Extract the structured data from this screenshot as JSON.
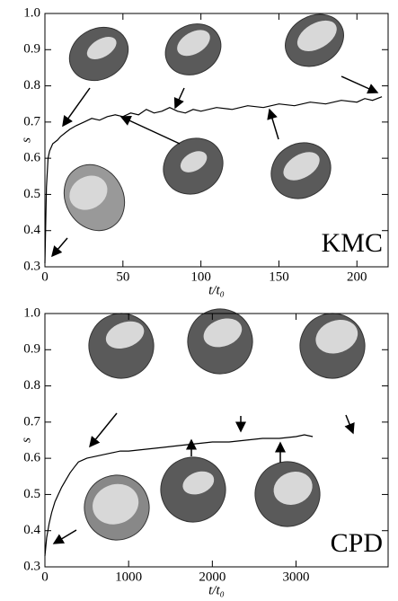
{
  "chart_data": [
    {
      "type": "line",
      "annotation": "KMC",
      "ylabel": "s",
      "xlabel": "t/t₀",
      "color": "#000000",
      "x": [
        0,
        1,
        2,
        3,
        5,
        8,
        10,
        13,
        16,
        20,
        25,
        30,
        35,
        40,
        45,
        50,
        55,
        60,
        65,
        70,
        75,
        80,
        85,
        90,
        95,
        100,
        110,
        120,
        130,
        140,
        150,
        160,
        170,
        180,
        190,
        200,
        205,
        210,
        216
      ],
      "values": [
        0.31,
        0.52,
        0.6,
        0.62,
        0.64,
        0.65,
        0.66,
        0.67,
        0.68,
        0.69,
        0.7,
        0.71,
        0.705,
        0.715,
        0.72,
        0.715,
        0.725,
        0.72,
        0.735,
        0.725,
        0.73,
        0.74,
        0.73,
        0.725,
        0.735,
        0.73,
        0.74,
        0.735,
        0.745,
        0.74,
        0.75,
        0.745,
        0.755,
        0.75,
        0.76,
        0.755,
        0.765,
        0.76,
        0.77
      ],
      "xlim": [
        0,
        220
      ],
      "xticks": [
        0,
        50,
        100,
        150,
        200
      ],
      "ylim": [
        0.3,
        1.0
      ],
      "yticks": [
        0.3,
        0.4,
        0.5,
        0.6,
        0.7,
        0.8,
        0.9,
        {
          "value": 1.0,
          "label": "1.0"
        }
      ]
    },
    {
      "type": "line",
      "annotation": "CPD",
      "ylabel": "s",
      "xlabel": "t/t₀",
      "color": "#000000",
      "x": [
        0,
        20,
        50,
        80,
        120,
        160,
        200,
        250,
        300,
        350,
        400,
        450,
        500,
        600,
        700,
        800,
        900,
        1000,
        1200,
        1400,
        1600,
        1800,
        2000,
        2200,
        2400,
        2600,
        2800,
        3000,
        3100,
        3200
      ],
      "values": [
        0.33,
        0.38,
        0.42,
        0.45,
        0.48,
        0.5,
        0.52,
        0.54,
        0.56,
        0.575,
        0.59,
        0.595,
        0.6,
        0.605,
        0.61,
        0.615,
        0.62,
        0.62,
        0.625,
        0.63,
        0.635,
        0.64,
        0.645,
        0.645,
        0.65,
        0.655,
        0.655,
        0.66,
        0.665,
        0.66
      ],
      "xlim": [
        0,
        4100
      ],
      "xticks": [
        0,
        1000,
        2000,
        3000
      ],
      "ylim": [
        0.3,
        1.0
      ],
      "yticks": [
        0.3,
        0.4,
        0.5,
        0.6,
        0.7,
        0.8,
        0.9,
        {
          "value": 1.0,
          "label": "1.0"
        }
      ]
    }
  ]
}
